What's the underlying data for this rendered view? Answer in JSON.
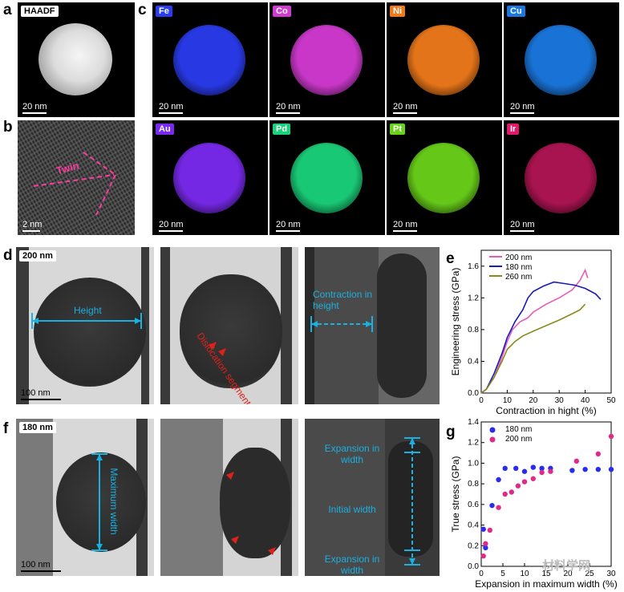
{
  "panels": {
    "a": {
      "letter": "a",
      "tag": "HAADF",
      "scale": "20 nm"
    },
    "b": {
      "letter": "b",
      "annotation": "Twin",
      "scale": "2 nm"
    },
    "c": {
      "letter": "c",
      "maps": [
        {
          "element": "Fe",
          "color": "#2a3cf0",
          "scale": "20 nm"
        },
        {
          "element": "Co",
          "color": "#d23ad2",
          "scale": "20 nm"
        },
        {
          "element": "Ni",
          "color": "#f07a1a",
          "scale": "20 nm"
        },
        {
          "element": "Cu",
          "color": "#1a78e0",
          "scale": "20 nm"
        },
        {
          "element": "Au",
          "color": "#7a2af0",
          "scale": "20 nm"
        },
        {
          "element": "Pd",
          "color": "#1ad27a",
          "scale": "20 nm"
        },
        {
          "element": "Pt",
          "color": "#6ad21a",
          "scale": "20 nm"
        },
        {
          "element": "Ir",
          "color": "#e01a6a",
          "scale": "20 nm"
        }
      ]
    },
    "d": {
      "letter": "d",
      "tag": "200 nm",
      "height_label": "Height",
      "dislocation_label": "Dislocation segment",
      "contraction_label": "Contraction in height",
      "scale": "100 nm"
    },
    "e": {
      "letter": "e"
    },
    "f": {
      "letter": "f",
      "tag": "180 nm",
      "max_width_label": "Maximum width",
      "expansion_top": "Expansion in width",
      "initial_width": "Initial width",
      "expansion_bottom": "Expansion in width",
      "scale": "100 nm"
    },
    "g": {
      "letter": "g"
    }
  },
  "watermark": "材料学网",
  "chart_data": [
    {
      "type": "line",
      "xlabel": "Contraction in hight (%)",
      "ylabel": "Engineering stress (GPa)",
      "xlim": [
        0,
        50
      ],
      "ylim": [
        0,
        1.8
      ],
      "xticks": [
        0,
        10,
        20,
        30,
        40,
        50
      ],
      "yticks": [
        0.0,
        0.4,
        0.8,
        1.2,
        1.6
      ],
      "legend": "top-left",
      "series": [
        {
          "name": "200 nm",
          "color": "#e75ab8",
          "x": [
            0,
            2,
            5,
            8,
            10,
            12,
            15,
            18,
            20,
            25,
            30,
            35,
            38,
            40,
            41
          ],
          "y": [
            0,
            0.05,
            0.2,
            0.45,
            0.65,
            0.8,
            0.9,
            0.95,
            1.02,
            1.12,
            1.2,
            1.3,
            1.42,
            1.55,
            1.45
          ]
        },
        {
          "name": "180 nm",
          "color": "#1a1ab8",
          "x": [
            0,
            2,
            5,
            8,
            10,
            13,
            16,
            18,
            20,
            24,
            28,
            32,
            36,
            40,
            44,
            46
          ],
          "y": [
            0,
            0.05,
            0.25,
            0.5,
            0.7,
            0.9,
            1.05,
            1.2,
            1.28,
            1.35,
            1.4,
            1.38,
            1.36,
            1.32,
            1.25,
            1.18
          ]
        },
        {
          "name": "260 nm",
          "color": "#8a8a1a",
          "x": [
            0,
            2,
            5,
            8,
            10,
            13,
            16,
            20,
            25,
            30,
            35,
            38,
            40
          ],
          "y": [
            0,
            0.05,
            0.2,
            0.4,
            0.55,
            0.65,
            0.72,
            0.78,
            0.85,
            0.92,
            1.0,
            1.05,
            1.12
          ]
        }
      ]
    },
    {
      "type": "scatter",
      "xlabel": "Expansion in maximum width (%)",
      "ylabel": "True stress (GPa)",
      "xlim": [
        0,
        30
      ],
      "ylim": [
        0,
        1.4
      ],
      "xticks": [
        0,
        5,
        10,
        15,
        20,
        25,
        30
      ],
      "yticks": [
        0.0,
        0.2,
        0.4,
        0.6,
        0.8,
        1.0,
        1.2,
        1.4
      ],
      "legend": "top-left",
      "series": [
        {
          "name": "180 nm",
          "color": "#2a2af0",
          "x": [
            0.5,
            1,
            2.5,
            4,
            5.5,
            8,
            10,
            12,
            14,
            16,
            21,
            24,
            27,
            30
          ],
          "y": [
            0.36,
            0.18,
            0.59,
            0.84,
            0.95,
            0.95,
            0.92,
            0.96,
            0.95,
            0.95,
            0.93,
            0.94,
            0.94,
            0.94
          ]
        },
        {
          "name": "200 nm",
          "color": "#e02a8a",
          "x": [
            0.5,
            1,
            2,
            4,
            5.5,
            7,
            8.5,
            10,
            12,
            14,
            16,
            22,
            27,
            30
          ],
          "y": [
            0.1,
            0.22,
            0.35,
            0.57,
            0.7,
            0.72,
            0.78,
            0.82,
            0.85,
            0.91,
            0.92,
            1.02,
            1.09,
            1.26
          ]
        }
      ]
    }
  ]
}
